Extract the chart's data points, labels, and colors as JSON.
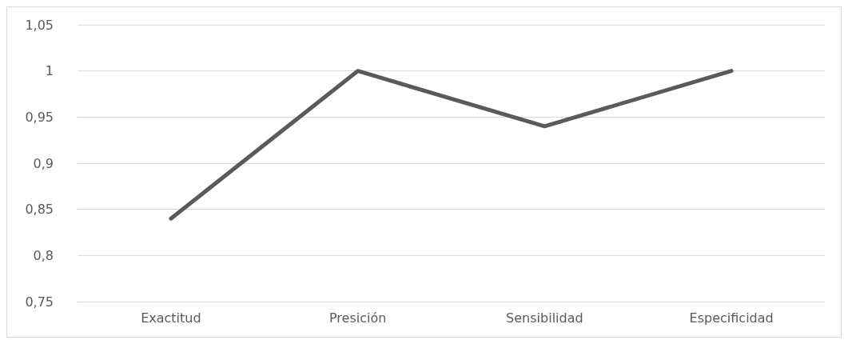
{
  "chart_data": {
    "type": "line",
    "categories": [
      "Exactitud",
      "Presición",
      "Sensibilidad",
      "Especificidad"
    ],
    "series": [
      {
        "color": "#5a5a5a",
        "values": [
          0.84,
          1,
          0.94,
          1
        ]
      }
    ],
    "ylim": [
      0.75,
      1.05
    ],
    "yticks": [
      {
        "value": 0.75,
        "label": "0,75"
      },
      {
        "value": 0.8,
        "label": "0,8"
      },
      {
        "value": 0.85,
        "label": "0,85"
      },
      {
        "value": 0.9,
        "label": "0,9"
      },
      {
        "value": 0.95,
        "label": "0,95"
      },
      {
        "value": 1,
        "label": "1"
      },
      {
        "value": 1.05,
        "label": "1,05"
      }
    ],
    "grid": "y",
    "marker": "none",
    "line_style": "solid"
  }
}
